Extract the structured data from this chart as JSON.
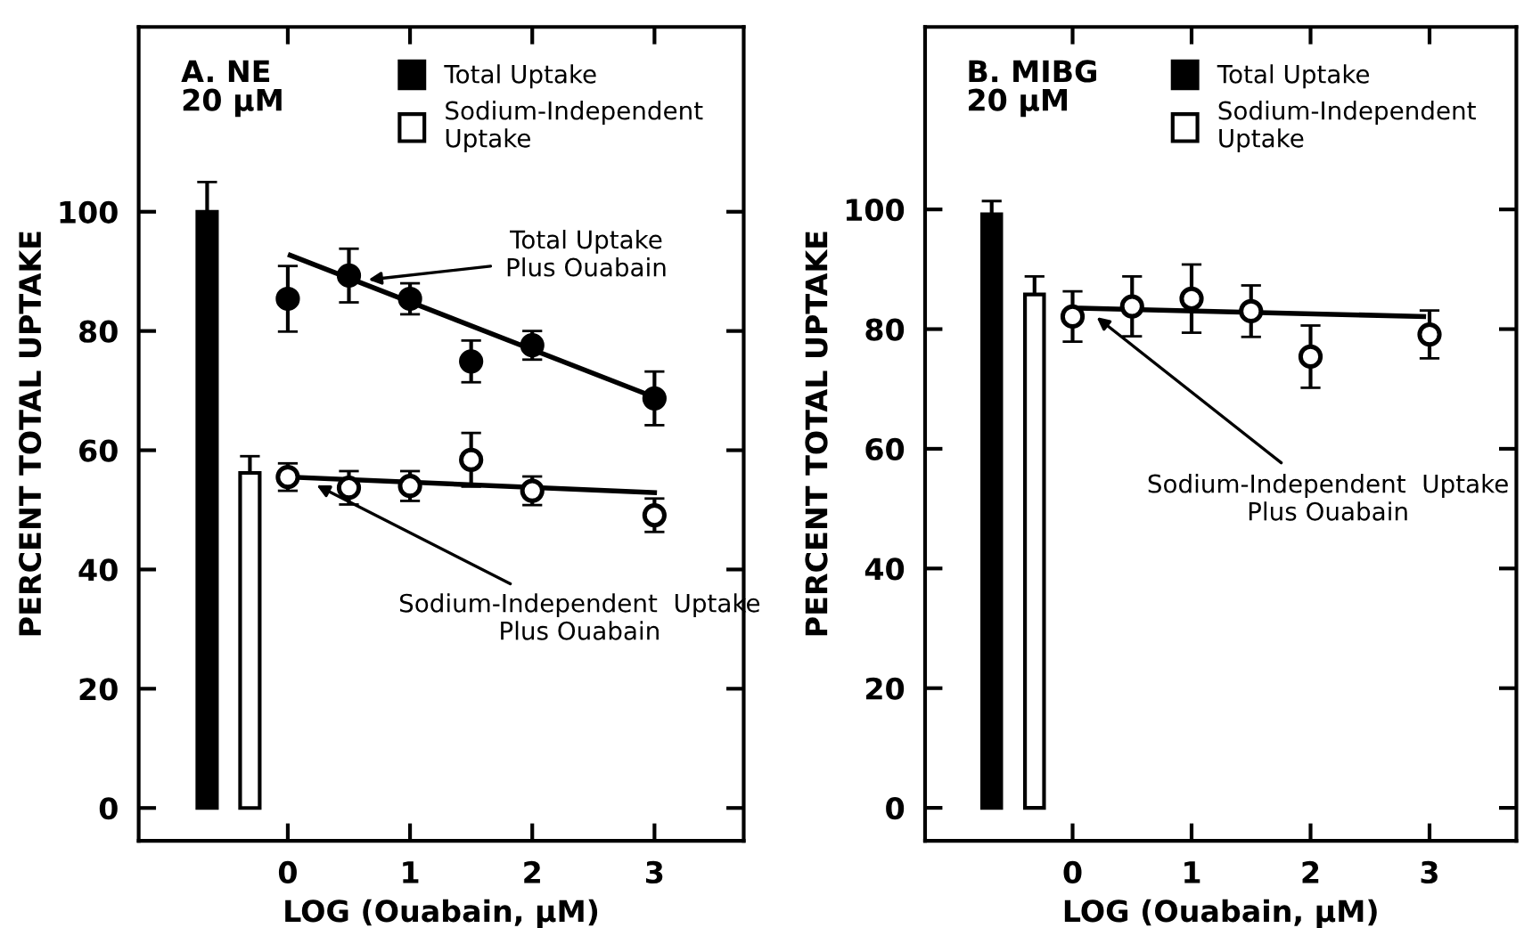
{
  "chart_data": [
    {
      "type": "scatter",
      "title": "A. NE\n20 µM",
      "xlabel": "LOG (Ouabain, µM)",
      "ylabel": "PERCENT TOTAL UPTAKE",
      "xlim": [
        -1.22,
        3.73
      ],
      "ylim": [
        -5.5,
        131
      ],
      "xticks": [
        0,
        1,
        2,
        3
      ],
      "yticks": [
        0,
        20,
        40,
        60,
        80,
        100
      ],
      "legend": "top right",
      "grid": false,
      "series": [
        {
          "type": "bar",
          "name": "Total Uptake",
          "color": "#000000",
          "x": [
            -0.66
          ],
          "values": [
            100
          ],
          "errors": [
            [
              100,
              105
            ]
          ]
        },
        {
          "type": "bar",
          "name": "Sodium-Independent\nUptake",
          "color": "#ffffff",
          "x": [
            -0.31
          ],
          "values": [
            56.2
          ],
          "errors": [
            [
              56.2,
              59
            ]
          ]
        },
        {
          "color": "#000000",
          "marker": "circle",
          "x": [
            0,
            0.5,
            1,
            1.5,
            2,
            3
          ],
          "values": [
            85.4,
            89.3,
            85.4,
            74.9,
            77.6,
            68.7
          ],
          "errors": [
            5.5,
            4.5,
            2.6,
            3.5,
            2.4,
            4.5
          ]
        },
        {
          "type": "line",
          "color": "#000000",
          "x": [
            0.02,
            3
          ],
          "values": [
            92.7,
            68.9
          ]
        },
        {
          "color": "#ffffff",
          "marker": "circle",
          "x": [
            0,
            0.5,
            1,
            1.5,
            2,
            3
          ],
          "values": [
            55.5,
            53.7,
            54,
            58.4,
            53.2,
            49.1
          ],
          "errors": [
            2.3,
            2.8,
            2.5,
            4.5,
            2.4,
            2.8
          ]
        },
        {
          "type": "line",
          "color": "#000000",
          "x": [
            0.02,
            3
          ],
          "values": [
            55.5,
            52.9
          ]
        }
      ],
      "annotations": [
        {
          "text": "Total Uptake\nPlus Ouabain",
          "x": 0.62,
          "y": 88.5
        },
        {
          "text": "Sodium-Independent  Uptake\nPlus Ouabain",
          "x": 0.2,
          "y": 54.5
        }
      ]
    },
    {
      "type": "scatter",
      "title": "B. MIBG\n20 µM",
      "xlabel": "LOG (Ouabain, µM)",
      "ylabel": "PERCENT TOTAL UPTAKE",
      "xlim": [
        -1.24,
        3.73
      ],
      "ylim": [
        -5.5,
        130.5
      ],
      "xticks": [
        0,
        1,
        2,
        3
      ],
      "yticks": [
        0,
        20,
        40,
        60,
        80,
        100
      ],
      "legend": "top right",
      "grid": false,
      "series": [
        {
          "type": "bar",
          "name": "Total Uptake",
          "color": "#000000",
          "x": [
            -0.68
          ],
          "values": [
            99.2
          ],
          "errors": [
            [
              99.2,
              101.4
            ]
          ]
        },
        {
          "type": "bar",
          "name": "Sodium-Independent\nUptake",
          "color": "#ffffff",
          "x": [
            -0.32
          ],
          "values": [
            85.8
          ],
          "errors": [
            [
              85.8,
              88.8
            ]
          ]
        },
        {
          "color": "#ffffff",
          "marker": "circle",
          "x": [
            0,
            0.5,
            1,
            1.5,
            2,
            3
          ],
          "values": [
            82.1,
            83.8,
            85.1,
            83,
            75.4,
            79.1
          ],
          "errors": [
            4.2,
            5,
            5.7,
            4.3,
            5.2,
            4
          ]
        },
        {
          "type": "line",
          "color": "#000000",
          "x": [
            0.07,
            2.95
          ],
          "values": [
            83.5,
            82.1
          ]
        }
      ],
      "annotations": [
        {
          "text": "Sodium-Independent  Uptake\nPlus Ouabain",
          "x": 0.17,
          "y": 82.5
        }
      ]
    }
  ]
}
